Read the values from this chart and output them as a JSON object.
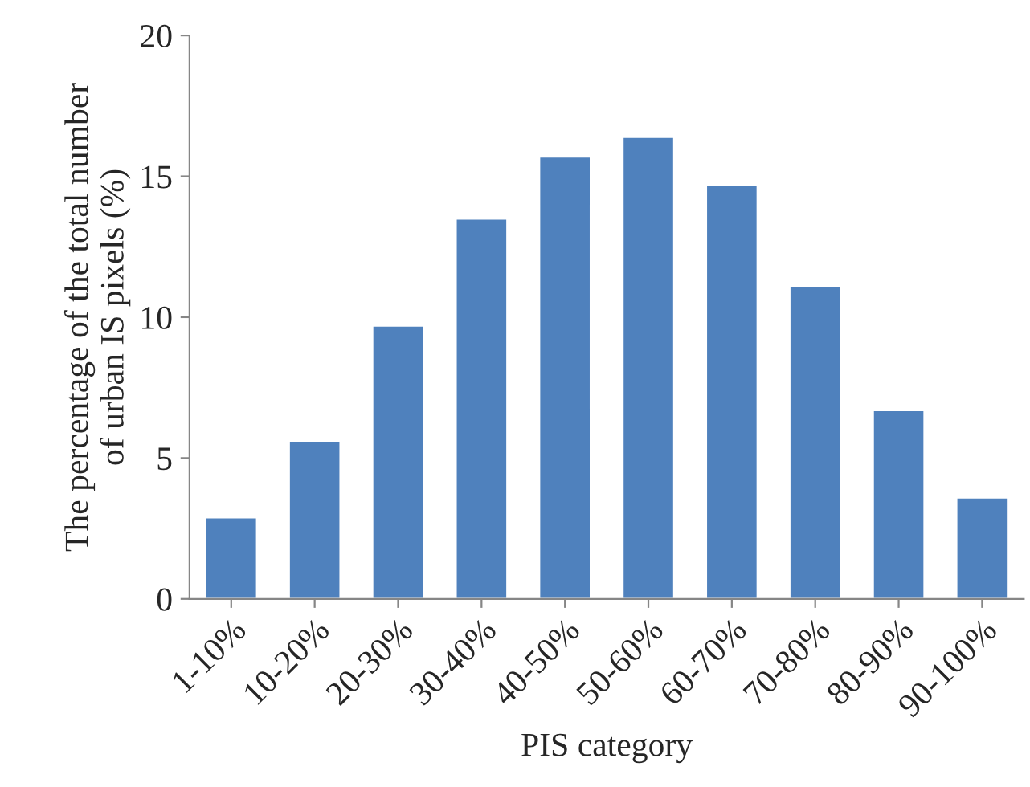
{
  "chart_data": {
    "type": "bar",
    "xlabel": "PIS category",
    "ylabel": "The percentage of the total number\nof urban IS pixels (%)",
    "categories": [
      "1-10%",
      "10-20%",
      "20-30%",
      "30-40%",
      "40-50%",
      "50-60%",
      "60-70%",
      "70-80%",
      "80-90%",
      "90-100%"
    ],
    "values": [
      2.9,
      5.6,
      9.7,
      13.5,
      15.7,
      16.4,
      14.7,
      11.1,
      6.7,
      3.6
    ],
    "color": "#4f81bd",
    "ylim": [
      0,
      20
    ],
    "yticks": [
      0,
      5,
      10,
      15,
      20
    ],
    "grid": false,
    "legend": false
  }
}
